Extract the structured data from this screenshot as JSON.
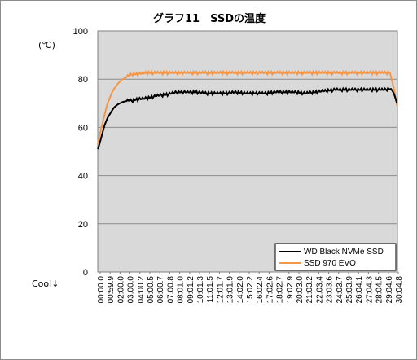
{
  "chart_data": {
    "type": "line",
    "title": "グラフ11　SSDの温度",
    "ylabel": "(℃)",
    "xlabel": "Cool↓",
    "ylim": [
      0,
      100
    ],
    "yticks": [
      0,
      20,
      40,
      60,
      80,
      100
    ],
    "grid": true,
    "legend_position": "bottom-right",
    "x_tick_labels": [
      "00:00.0",
      "00:59.9",
      "02:00.0",
      "03:00.0",
      "04:00.2",
      "05:00.5",
      "06:00.7",
      "07:00.8",
      "08:01.0",
      "09:01.2",
      "10:01.3",
      "11:01.5",
      "12:01.7",
      "13:01.9",
      "14:02.0",
      "15:02.2",
      "16:02.4",
      "17:02.6",
      "18:02.7",
      "19:02.9",
      "20:03.0",
      "21:03.2",
      "22:03.4",
      "23:03.6",
      "24:03.7",
      "25:03.9",
      "26:04.1",
      "27:04.3",
      "28:04.5",
      "29:04.6",
      "30:04.8"
    ],
    "series": [
      {
        "name": "WD Black NVMe SSD",
        "color": "#000000",
        "x": [
          0,
          0.1,
          0.3,
          0.5,
          0.7,
          1,
          1.3,
          1.6,
          2,
          2.5,
          3,
          3.5,
          4,
          5,
          6,
          7,
          7.5,
          8,
          9,
          10,
          11,
          12,
          13,
          14,
          15,
          16,
          17,
          18,
          19,
          20,
          21,
          22,
          23,
          24,
          25,
          26,
          27,
          28,
          29,
          29.7,
          30,
          30.3
        ],
        "y": [
          51,
          52,
          55,
          58,
          61,
          64,
          66,
          68,
          69.5,
          70.5,
          71,
          71,
          71.5,
          72,
          73,
          73.5,
          74,
          74.5,
          74.5,
          74.5,
          74,
          74,
          74,
          74.5,
          74,
          74,
          74,
          74.5,
          74.5,
          74.5,
          74,
          74.5,
          75,
          75.5,
          75.5,
          75.5,
          75.5,
          75.5,
          75.5,
          76,
          74,
          70
        ]
      },
      {
        "name": "SSD 970 EVO",
        "color": "#f79646",
        "x": [
          0,
          0.2,
          0.5,
          0.8,
          1,
          1.5,
          2,
          2.5,
          3,
          3.5,
          4,
          5,
          6,
          8,
          10,
          12,
          14,
          16,
          18,
          20,
          22,
          24,
          26,
          28,
          29,
          29.6,
          30,
          30.3
        ],
        "y": [
          53,
          57,
          62,
          67,
          70,
          75,
          78,
          80,
          81,
          82,
          82,
          82.5,
          82.5,
          82.5,
          82.5,
          82.5,
          82.5,
          82.5,
          82.5,
          82.5,
          82.5,
          82.5,
          82.5,
          82.5,
          82.5,
          82.5,
          76,
          69
        ]
      }
    ]
  }
}
